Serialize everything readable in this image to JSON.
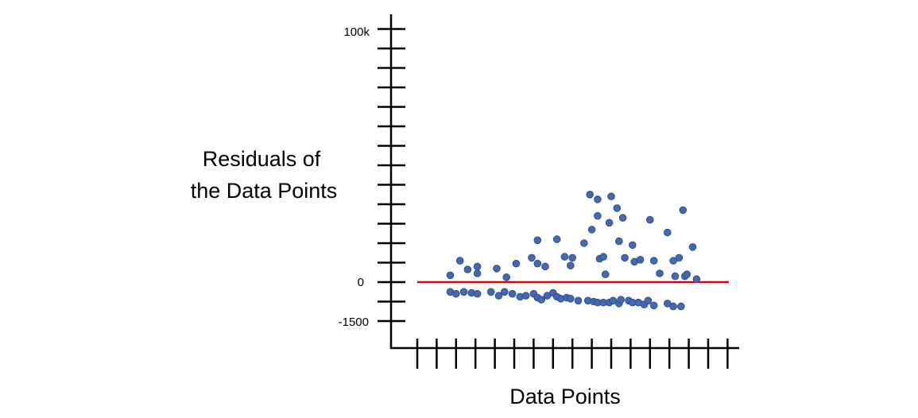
{
  "chart_data": {
    "type": "scatter",
    "title": "",
    "xlabel": "Data Points",
    "ylabel_lines": [
      "Residuals",
      "of the Data Points"
    ],
    "ylabel_line1": "Residuals of",
    "ylabel_line2": "the Data Points",
    "y_tick_labels": {
      "top": "100k",
      "zero": "0",
      "bottom": "-1500"
    },
    "grid": false,
    "legend": "none",
    "colors": {
      "points": "#4569b0",
      "point_edge": "#2d4f8f",
      "reference_line": "#e00000",
      "axis": "#000000"
    },
    "reference_line": {
      "y": 0,
      "color": "#e00000"
    },
    "points_note_units": "residual values in ticks of the y axis (0 = red line)",
    "series": [
      {
        "points": [
          {
            "x": 1.7,
            "y": 0.35
          },
          {
            "x": 2.2,
            "y": 1.1
          },
          {
            "x": 2.6,
            "y": 0.65
          },
          {
            "x": 3.1,
            "y": 0.45
          },
          {
            "x": 3.1,
            "y": 0.8
          },
          {
            "x": 4.1,
            "y": 0.7
          },
          {
            "x": 4.6,
            "y": 0.25
          },
          {
            "x": 5.1,
            "y": 0.95
          },
          {
            "x": 5.9,
            "y": 1.25
          },
          {
            "x": 6.2,
            "y": 2.15
          },
          {
            "x": 6.2,
            "y": 0.95
          },
          {
            "x": 6.6,
            "y": 0.8
          },
          {
            "x": 7.2,
            "y": 2.2
          },
          {
            "x": 7.6,
            "y": 1.3
          },
          {
            "x": 7.9,
            "y": 0.85
          },
          {
            "x": 8.0,
            "y": 1.25
          },
          {
            "x": 8.6,
            "y": 2.0
          },
          {
            "x": 8.9,
            "y": 4.5
          },
          {
            "x": 9.0,
            "y": 2.7
          },
          {
            "x": 9.3,
            "y": 4.25
          },
          {
            "x": 9.3,
            "y": 3.4
          },
          {
            "x": 9.4,
            "y": 1.2
          },
          {
            "x": 9.6,
            "y": 1.3
          },
          {
            "x": 9.7,
            "y": 0.4
          },
          {
            "x": 9.9,
            "y": 3.05
          },
          {
            "x": 10.0,
            "y": 4.4
          },
          {
            "x": 10.3,
            "y": 3.8
          },
          {
            "x": 10.4,
            "y": 2.1
          },
          {
            "x": 10.6,
            "y": 3.3
          },
          {
            "x": 10.7,
            "y": 1.25
          },
          {
            "x": 11.1,
            "y": 1.9
          },
          {
            "x": 11.2,
            "y": 1.05
          },
          {
            "x": 11.5,
            "y": 1.15
          },
          {
            "x": 12.0,
            "y": 3.2
          },
          {
            "x": 12.2,
            "y": 1.1
          },
          {
            "x": 12.5,
            "y": 0.45
          },
          {
            "x": 12.9,
            "y": 2.55
          },
          {
            "x": 13.2,
            "y": 1.1
          },
          {
            "x": 13.3,
            "y": 0.3
          },
          {
            "x": 13.5,
            "y": 1.25
          },
          {
            "x": 13.7,
            "y": 3.7
          },
          {
            "x": 13.8,
            "y": 0.3
          },
          {
            "x": 13.9,
            "y": 0.4
          },
          {
            "x": 14.2,
            "y": 1.8
          },
          {
            "x": 14.4,
            "y": 0.15
          },
          {
            "x": 1.7,
            "y": -0.5
          },
          {
            "x": 2.0,
            "y": -0.6
          },
          {
            "x": 2.4,
            "y": -0.5
          },
          {
            "x": 2.8,
            "y": -0.55
          },
          {
            "x": 3.1,
            "y": -0.6
          },
          {
            "x": 3.8,
            "y": -0.5
          },
          {
            "x": 4.2,
            "y": -0.7
          },
          {
            "x": 4.5,
            "y": -0.5
          },
          {
            "x": 4.9,
            "y": -0.6
          },
          {
            "x": 5.3,
            "y": -0.75
          },
          {
            "x": 5.6,
            "y": -0.7
          },
          {
            "x": 6.0,
            "y": -0.6
          },
          {
            "x": 6.2,
            "y": -0.8
          },
          {
            "x": 6.4,
            "y": -0.9
          },
          {
            "x": 6.7,
            "y": -0.7
          },
          {
            "x": 7.0,
            "y": -0.55
          },
          {
            "x": 7.2,
            "y": -0.75
          },
          {
            "x": 7.4,
            "y": -0.85
          },
          {
            "x": 7.7,
            "y": -0.8
          },
          {
            "x": 7.9,
            "y": -0.85
          },
          {
            "x": 8.3,
            "y": -0.95
          },
          {
            "x": 8.8,
            "y": -0.95
          },
          {
            "x": 9.1,
            "y": -1.0
          },
          {
            "x": 9.3,
            "y": -1.05
          },
          {
            "x": 9.6,
            "y": -1.05
          },
          {
            "x": 9.9,
            "y": -1.05
          },
          {
            "x": 10.1,
            "y": -0.95
          },
          {
            "x": 10.4,
            "y": -1.1
          },
          {
            "x": 10.5,
            "y": -0.9
          },
          {
            "x": 10.9,
            "y": -0.95
          },
          {
            "x": 11.1,
            "y": -1.05
          },
          {
            "x": 11.4,
            "y": -1.05
          },
          {
            "x": 11.7,
            "y": -1.15
          },
          {
            "x": 11.9,
            "y": -0.95
          },
          {
            "x": 12.2,
            "y": -1.2
          },
          {
            "x": 12.9,
            "y": -1.1
          },
          {
            "x": 13.2,
            "y": -1.25
          },
          {
            "x": 13.6,
            "y": -1.25
          }
        ]
      }
    ]
  }
}
